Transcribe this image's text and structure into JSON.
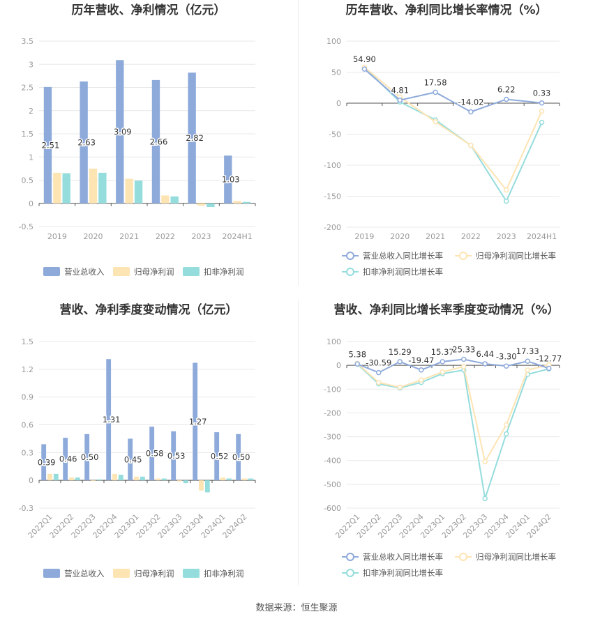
{
  "footer": "数据来源：恒生聚源",
  "colors": {
    "revenue": "#8eaadb",
    "net": "#fde4b3",
    "nonrec": "#95dcdc",
    "revenue_line": "#8eaadb",
    "net_line": "#fde4b3",
    "nonrec_line": "#95dcdc"
  },
  "chart_data": [
    {
      "type": "bar",
      "title": "历年营收、净利情况（亿元）",
      "categories": [
        "2019",
        "2020",
        "2021",
        "2022",
        "2023",
        "2024H1"
      ],
      "ylim": [
        -0.5,
        3.5
      ],
      "yticks": [
        "3.5",
        "3",
        "2.5",
        "2",
        "1.5",
        "1",
        "0.5",
        "0",
        "-0.5"
      ],
      "series": [
        {
          "name": "营业总收入",
          "values": [
            2.51,
            2.63,
            3.09,
            2.66,
            2.82,
            1.03
          ]
        },
        {
          "name": "归母净利润",
          "values": [
            0.66,
            0.75,
            0.53,
            0.17,
            -0.05,
            0.05
          ]
        },
        {
          "name": "扣非净利润",
          "values": [
            0.65,
            0.66,
            0.49,
            0.15,
            -0.08,
            0.03
          ]
        }
      ],
      "data_labels": [
        "2.51",
        "2.63",
        "3.09",
        "2.66",
        "2.82",
        "1.03"
      ],
      "legend": "bottom"
    },
    {
      "type": "line",
      "title": "历年营收、净利同比增长率情况（%）",
      "categories": [
        "2019",
        "2020",
        "2021",
        "2022",
        "2023",
        "2024H1"
      ],
      "ylim": [
        -200,
        100
      ],
      "yticks": [
        "100",
        "50",
        "0",
        "-50",
        "-100",
        "-150",
        "-200"
      ],
      "series": [
        {
          "name": "营业总收入同比增长率",
          "values": [
            54.9,
            4.81,
            17.58,
            -14.02,
            6.22,
            0.33
          ]
        },
        {
          "name": "归母净利润同比增长率",
          "values": [
            58,
            10,
            -30,
            -68,
            -140,
            -13
          ]
        },
        {
          "name": "扣非净利润同比增长率",
          "values": [
            57,
            2,
            -27,
            -68,
            -158,
            -31
          ]
        }
      ],
      "data_labels": [
        "54.90",
        "4.81",
        "17.58",
        "-14.02",
        "6.22",
        "0.33"
      ],
      "legend": "bottom"
    },
    {
      "type": "bar",
      "title": "营收、净利季度变动情况（亿元）",
      "categories": [
        "2022Q1",
        "2022Q2",
        "2022Q3",
        "2022Q4",
        "2023Q1",
        "2023Q2",
        "2023Q3",
        "2023Q4",
        "2024Q1",
        "2024Q2"
      ],
      "ylim": [
        -0.3,
        1.5
      ],
      "yticks": [
        "1.5",
        "1.2",
        "0.9",
        "0.6",
        "0.3",
        "0",
        "-0.3"
      ],
      "series": [
        {
          "name": "营业总收入",
          "values": [
            0.39,
            0.46,
            0.5,
            1.31,
            0.45,
            0.58,
            0.53,
            1.27,
            0.52,
            0.5
          ]
        },
        {
          "name": "归母净利润",
          "values": [
            0.07,
            0.03,
            0.0,
            0.07,
            0.04,
            0.02,
            -0.01,
            -0.11,
            0.03,
            0.02
          ]
        },
        {
          "name": "扣非净利润",
          "values": [
            0.07,
            0.03,
            0.01,
            0.06,
            0.04,
            0.02,
            -0.03,
            -0.13,
            0.02,
            0.02
          ]
        }
      ],
      "data_labels": [
        "0.39",
        "0.46",
        "0.50",
        "1.31",
        "0.45",
        "0.58",
        "0.53",
        "1.27",
        "0.52",
        "0.50"
      ],
      "legend": "bottom"
    },
    {
      "type": "line",
      "title": "营收、净利同比增长率季度变动情况（%）",
      "categories": [
        "2022Q1",
        "2022Q2",
        "2022Q3",
        "2022Q4",
        "2023Q1",
        "2023Q2",
        "2023Q3",
        "2023Q4",
        "2024Q1",
        "2024Q2"
      ],
      "ylim": [
        -600,
        100
      ],
      "yticks": [
        "100",
        "0",
        "-100",
        "-200",
        "-300",
        "-400",
        "-500",
        "-600"
      ],
      "series": [
        {
          "name": "营业总收入同比增长率",
          "values": [
            5.38,
            -30.59,
            15.29,
            -19.47,
            15.37,
            25.33,
            6.44,
            -3.3,
            17.33,
            -12.77
          ]
        },
        {
          "name": "归母净利润同比增长率",
          "values": [
            8,
            -72,
            -92,
            -62,
            -28,
            -5,
            -405,
            -250,
            -20,
            2
          ]
        },
        {
          "name": "扣非净利润同比增长率",
          "values": [
            5,
            -78,
            -95,
            -72,
            -35,
            -20,
            -560,
            -288,
            -38,
            -15
          ]
        }
      ],
      "data_labels": [
        "5.38",
        "-30.59",
        "15.29",
        "-19.47",
        "15.37",
        "25.33",
        "6.44",
        "-3.30",
        "17.33",
        "-12.77"
      ],
      "legend": "bottom"
    }
  ]
}
